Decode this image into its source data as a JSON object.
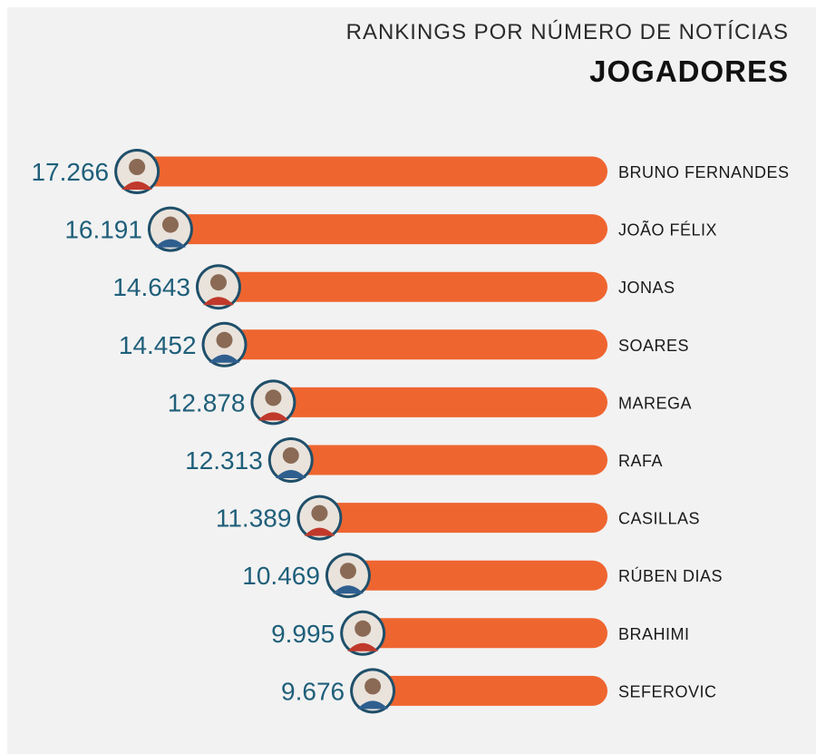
{
  "header": {
    "subtitle": "RANKINGS POR NÚMERO DE NOTÍCIAS",
    "title": "JOGADORES"
  },
  "colors": {
    "bar": "#ef6530",
    "value_text": "#1f5f7a",
    "name_text": "#1a1a1a",
    "avatar_ring": "#1f4f6a",
    "background": "#f2f2f2"
  },
  "chart_data": {
    "type": "bar",
    "orientation": "horizontal",
    "categories": [
      "BRUNO FERNANDES",
      "JOÃO FÉLIX",
      "JONAS",
      "SOARES",
      "MAREGA",
      "RAFA",
      "CASILLAS",
      "RÚBEN DIAS",
      "BRAHIMI",
      "SEFEROVIC"
    ],
    "values": [
      17266,
      16191,
      14643,
      14452,
      12878,
      12313,
      11389,
      10469,
      9995,
      9676
    ],
    "value_labels": [
      "17.266",
      "16.191",
      "14.643",
      "14.452",
      "12.878",
      "12.313",
      "11.389",
      "10.469",
      "9.995",
      "9.676"
    ],
    "avatar_icons": [
      "player-photo-icon",
      "player-photo-icon",
      "player-photo-icon",
      "player-photo-icon",
      "player-photo-icon",
      "player-photo-icon",
      "player-photo-icon",
      "player-photo-icon",
      "player-photo-icon",
      "player-photo-icon"
    ],
    "grid": false,
    "legend": "none"
  }
}
